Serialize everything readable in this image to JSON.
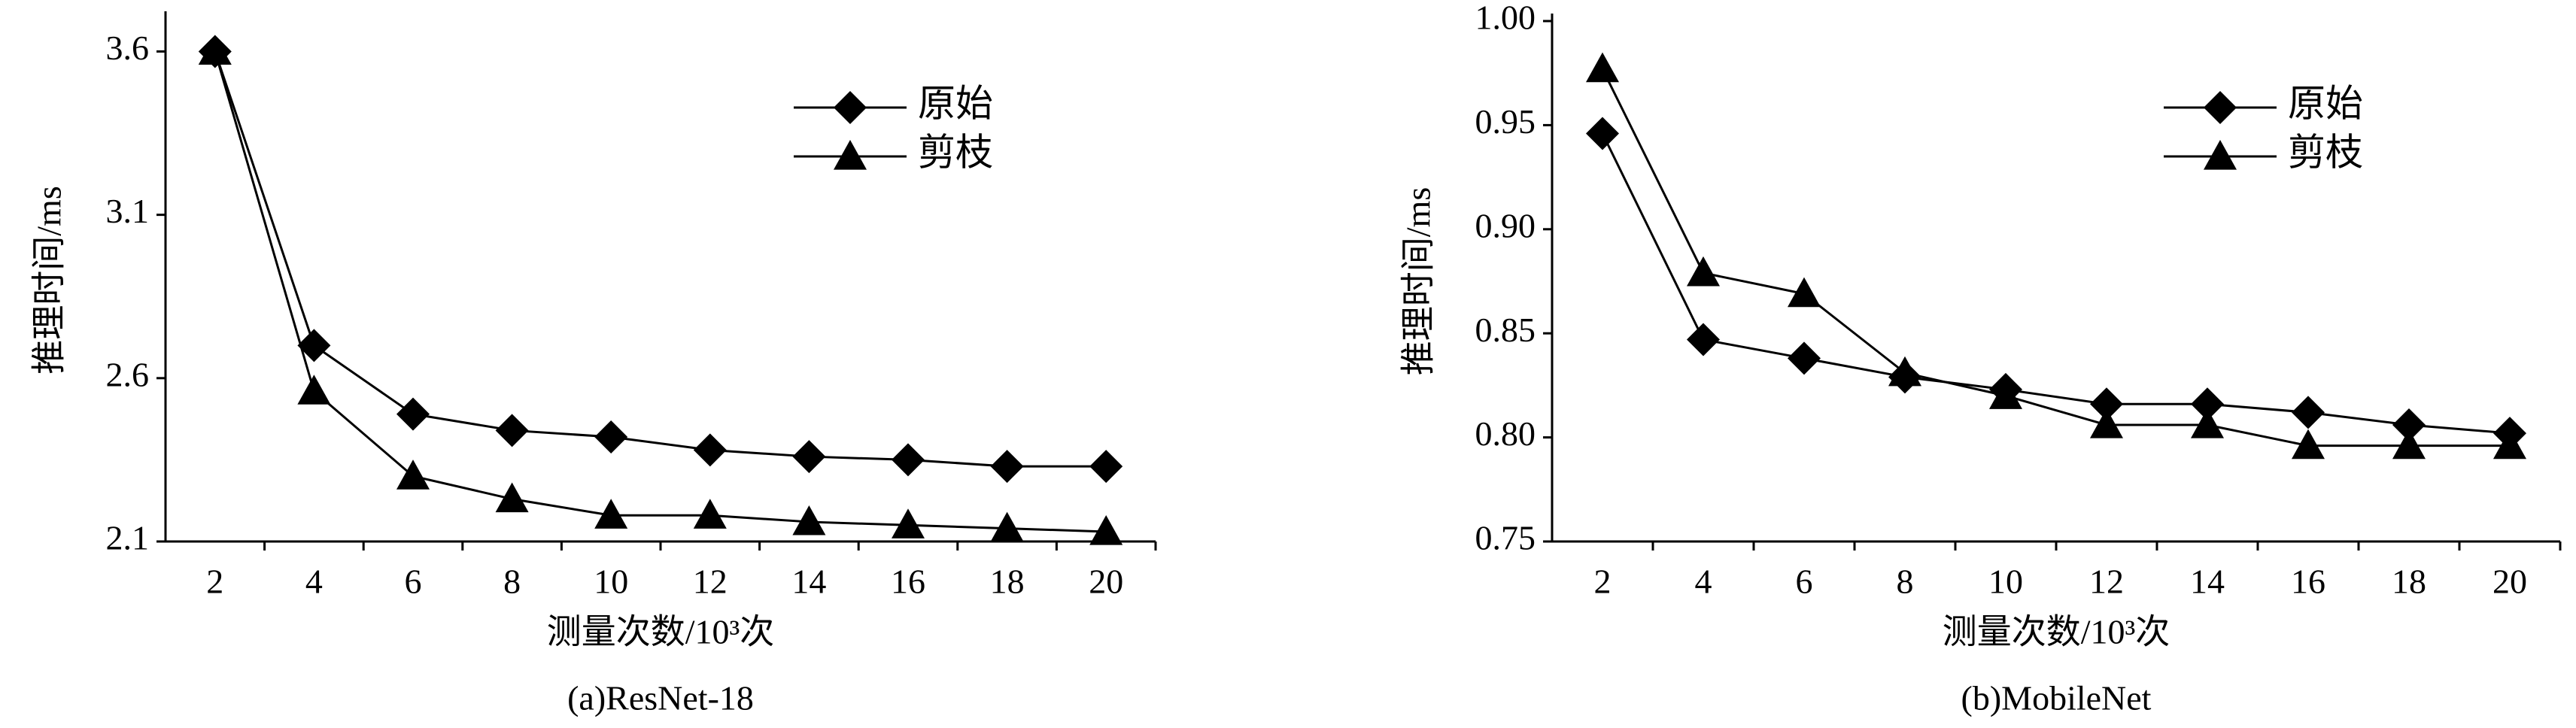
{
  "chart_data": [
    {
      "type": "line",
      "caption": "(a)ResNet-18",
      "x_label": "测量次数/10³次",
      "y_label": "推理时间/ms",
      "categories": [
        "2",
        "4",
        "6",
        "8",
        "10",
        "12",
        "14",
        "16",
        "18",
        "20"
      ],
      "series": [
        {
          "name": "原始",
          "color": "#000000",
          "marker": "diamond",
          "values": [
            3.6,
            2.7,
            2.49,
            2.44,
            2.42,
            2.38,
            2.36,
            2.35,
            2.33,
            2.33
          ]
        },
        {
          "name": "剪枝",
          "color": "#000000",
          "marker": "triangle",
          "values": [
            3.6,
            2.56,
            2.3,
            2.23,
            2.18,
            2.18,
            2.16,
            2.15,
            2.14,
            2.13
          ]
        }
      ],
      "ylim": [
        2.1,
        3.7
      ],
      "yticks": [
        2.1,
        2.6,
        3.1,
        3.6
      ],
      "grid": false
    },
    {
      "type": "line",
      "caption": "(b)MobileNet",
      "x_label": "测量次数/10³次",
      "y_label": "推理时间/ms",
      "categories": [
        "2",
        "4",
        "6",
        "8",
        "10",
        "12",
        "14",
        "16",
        "18",
        "20"
      ],
      "series": [
        {
          "name": "原始",
          "color": "#000000",
          "marker": "diamond",
          "values": [
            0.946,
            0.847,
            0.838,
            0.829,
            0.823,
            0.816,
            0.816,
            0.812,
            0.806,
            0.802
          ]
        },
        {
          "name": "剪枝",
          "color": "#000000",
          "marker": "triangle",
          "values": [
            0.977,
            0.879,
            0.869,
            0.831,
            0.82,
            0.806,
            0.806,
            0.796,
            0.796,
            0.796
          ]
        }
      ],
      "ylim": [
        0.75,
        1.0
      ],
      "yticks": [
        0.75,
        {
          "value": 0.8,
          "label": "0.80"
        },
        0.85,
        {
          "value": 0.9,
          "label": "0.90"
        },
        0.95,
        {
          "value": 1.0,
          "label": "1.00"
        }
      ],
      "grid": false
    }
  ]
}
